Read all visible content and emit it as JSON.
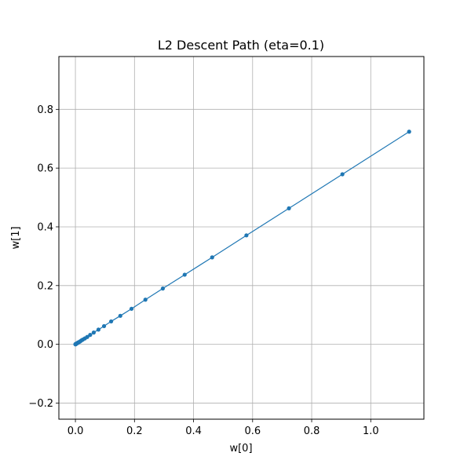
{
  "chart_data": {
    "type": "line",
    "title": "L2 Descent Path (eta=0.1)",
    "xlabel": "w[0]",
    "ylabel": "w[1]",
    "xlim": [
      -0.056,
      1.18
    ],
    "ylim": [
      -0.255,
      0.98
    ],
    "xticks": [
      0.0,
      0.2,
      0.4,
      0.6,
      0.8,
      1.0
    ],
    "xtick_labels": [
      "0.0",
      "0.2",
      "0.4",
      "0.6",
      "0.8",
      "1.0"
    ],
    "yticks": [
      -0.2,
      0.0,
      0.2,
      0.4,
      0.6,
      0.8
    ],
    "ytick_labels": [
      "−0.2",
      "0.0",
      "0.2",
      "0.4",
      "0.6",
      "0.8"
    ],
    "grid": true,
    "marker": "circle",
    "series": [
      {
        "color": "#1f77b4",
        "x": [
          1.13,
          0.904,
          0.723,
          0.579,
          0.463,
          0.37,
          0.296,
          0.237,
          0.19,
          0.152,
          0.121,
          0.097,
          0.078,
          0.062,
          0.05,
          0.04,
          0.032,
          0.025,
          0.02,
          0.016,
          0.013,
          0.01,
          0.008,
          0.0066,
          0.0053,
          0.0042,
          0.0034,
          0.0027,
          0.0022,
          0.0017,
          0.0014,
          0.0011,
          0.0009,
          0.0007,
          0.0006,
          0.0005,
          0.0004,
          0.0003,
          0.0002,
          0.0001
        ],
        "y": [
          0.724,
          0.579,
          0.463,
          0.371,
          0.296,
          0.237,
          0.19,
          0.152,
          0.121,
          0.097,
          0.078,
          0.062,
          0.05,
          0.04,
          0.032,
          0.025,
          0.02,
          0.016,
          0.013,
          0.01,
          0.008,
          0.0066,
          0.0053,
          0.0042,
          0.0034,
          0.0027,
          0.0022,
          0.0017,
          0.0014,
          0.0011,
          0.0009,
          0.0007,
          0.0006,
          0.0005,
          0.0004,
          0.0003,
          0.0002,
          0.0001,
          7e-05,
          4e-05
        ]
      }
    ]
  }
}
